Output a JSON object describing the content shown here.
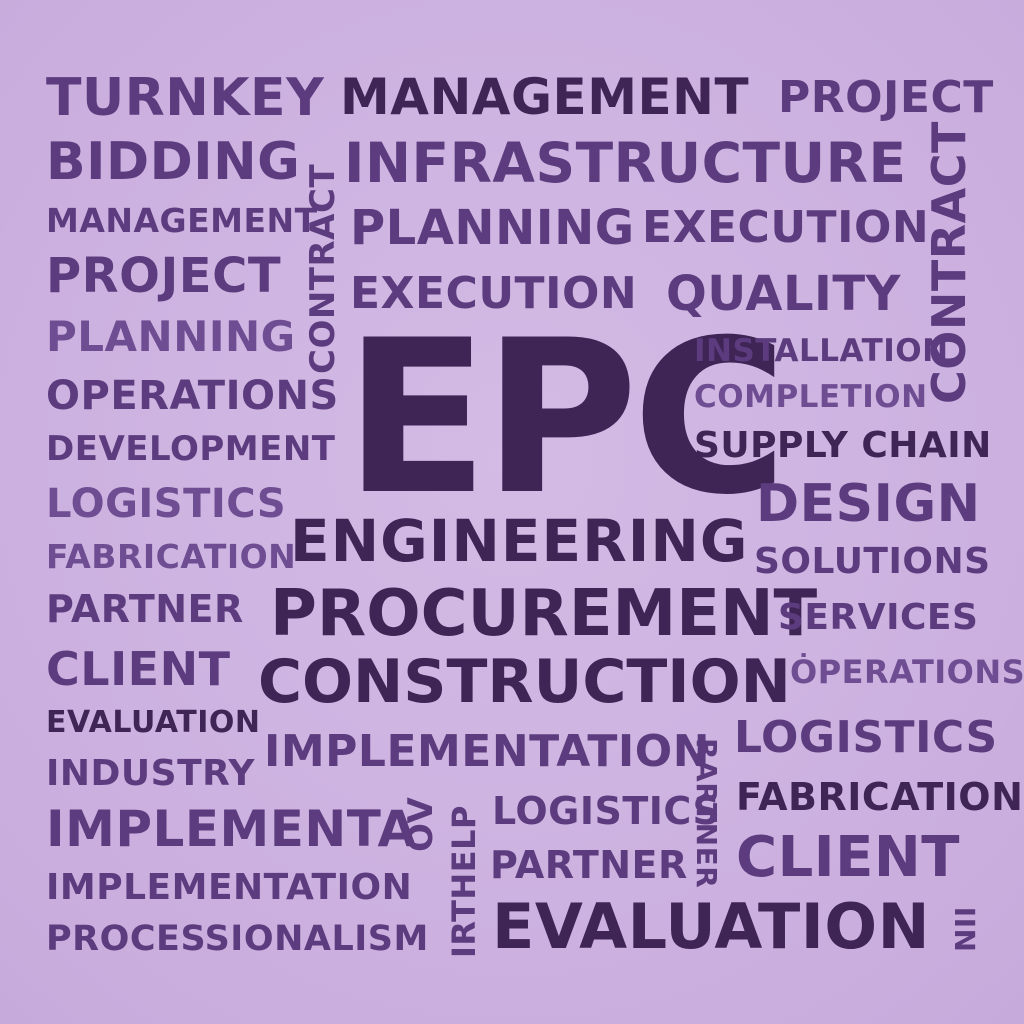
{
  "center": {
    "main": "EPC",
    "line1": "ENGINEERING",
    "line2": "PROCUREMENT",
    "line3": "CONSTRUCTION"
  },
  "words": {
    "turnkey": "TURNKEY",
    "management_top": "MANAGEMENT",
    "project_top": "PROJECT",
    "bidding": "BIDDING",
    "infrastructure": "INFRASTRUCTURE",
    "management_left": "MANAGEMENT",
    "planning_mid": "PLANNING",
    "execution_right": "EXECUTION",
    "project_left": "PROJECT",
    "execution_mid": "EXECUTION",
    "quality": "QUALITY",
    "planning_left": "PLANNING",
    "installation": "INSTALLATION",
    "operations_left": "OPERATIONS",
    "completion": "COMPLETION",
    "development": "DEVELOPMENT",
    "supply_chain": "SUPPLY CHAIN",
    "logistics_left": "LOGISTICS",
    "design": "DESIGN",
    "fabrication_left": "FABRICATION",
    "solutions": "SOLUTIONS",
    "partner_left": "PARTNER",
    "services": "SERVICES",
    "client_left": "CLIENT",
    "operations_right": "ȮPERATIONS",
    "evaluation_left": "EVALUATION",
    "implementation_mid": "IMPLEMENTATION",
    "logistics_right": "LOGISTICS",
    "industry": "INDUSTRY",
    "fabrication_right": "FABRICATION",
    "implementa": "IMPLEMENTA",
    "logistics_bottom": "LOGISTICS",
    "client_right": "CLIENT",
    "implementation_left": "IMPLEMENTATION",
    "partner_bottom": "PARTNER",
    "processionalism": "PROCESSIONALISM",
    "evaluation_bottom": "EVALUATION",
    "contract_vertical_left": "CONTRACT",
    "contract_vertical_right": "CONTRACT",
    "rartner_vertical": "RARTNER",
    "irthelp_vertical": "IRTHELP",
    "ov_vertical": "OV",
    "nii_vertical": "NII"
  },
  "colors": {
    "background": "#cdb3e0",
    "dark": "#3f2556",
    "medium": "#5c3c7e",
    "light": "#6e4d92"
  }
}
